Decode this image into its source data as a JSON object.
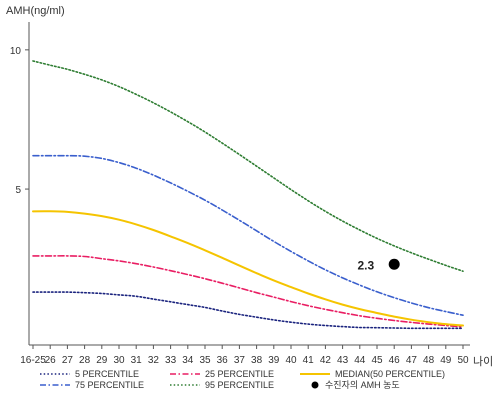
{
  "chart_data": {
    "type": "line",
    "ylabel": "AMH(ng/ml)",
    "xlabel": "나이",
    "x_ticks": [
      "16-25",
      "26",
      "27",
      "28",
      "29",
      "30",
      "31",
      "32",
      "33",
      "34",
      "35",
      "36",
      "37",
      "38",
      "39",
      "40",
      "41",
      "42",
      "43",
      "44",
      "45",
      "46",
      "47",
      "48",
      "49",
      "50"
    ],
    "y_ticks": [
      5,
      10
    ],
    "ylim": [
      -0.6,
      11
    ],
    "grid": false,
    "legend_position": "bottom",
    "series": [
      {
        "name": "5 PERCENTILE",
        "color": "#1a237e",
        "style": "dotted",
        "values": [
          1.3,
          1.3,
          1.3,
          1.28,
          1.25,
          1.2,
          1.15,
          1.05,
          0.95,
          0.85,
          0.75,
          0.62,
          0.5,
          0.4,
          0.3,
          0.22,
          0.15,
          0.1,
          0.06,
          0.03,
          0.02,
          0.01,
          0.0,
          0.0,
          0.0,
          0.0
        ]
      },
      {
        "name": "25 PERCENTILE",
        "color": "#e91e63",
        "style": "dashdot",
        "values": [
          2.6,
          2.6,
          2.6,
          2.58,
          2.5,
          2.42,
          2.32,
          2.2,
          2.07,
          1.93,
          1.78,
          1.62,
          1.45,
          1.28,
          1.12,
          0.96,
          0.81,
          0.68,
          0.56,
          0.45,
          0.36,
          0.28,
          0.21,
          0.15,
          0.1,
          0.05
        ]
      },
      {
        "name": "MEDIAN(50 PERCENTILE)",
        "color": "#f5c400",
        "style": "solid",
        "values": [
          4.2,
          4.2,
          4.18,
          4.12,
          4.03,
          3.9,
          3.73,
          3.53,
          3.3,
          3.06,
          2.8,
          2.53,
          2.25,
          1.98,
          1.72,
          1.48,
          1.25,
          1.04,
          0.85,
          0.69,
          0.55,
          0.42,
          0.31,
          0.22,
          0.15,
          0.1
        ]
      },
      {
        "name": "75 PERCENTILE",
        "color": "#3a5fcd",
        "style": "dashdot",
        "values": [
          6.2,
          6.2,
          6.2,
          6.18,
          6.1,
          5.95,
          5.75,
          5.5,
          5.22,
          4.92,
          4.6,
          4.25,
          3.88,
          3.5,
          3.12,
          2.76,
          2.42,
          2.1,
          1.81,
          1.55,
          1.31,
          1.1,
          0.91,
          0.74,
          0.6,
          0.47
        ]
      },
      {
        "name": "95 PERCENTILE",
        "color": "#2e7d32",
        "style": "dotted",
        "values": [
          9.6,
          9.45,
          9.3,
          9.12,
          8.92,
          8.68,
          8.4,
          8.1,
          7.77,
          7.42,
          7.05,
          6.65,
          6.24,
          5.82,
          5.4,
          4.98,
          4.58,
          4.2,
          3.85,
          3.53,
          3.23,
          2.96,
          2.71,
          2.48,
          2.26,
          2.05
        ]
      }
    ],
    "annotation": {
      "label": "2.3",
      "x": "46",
      "y": 2.3,
      "legend_label": "수진자의 AMH 농도",
      "color": "#000000"
    }
  }
}
